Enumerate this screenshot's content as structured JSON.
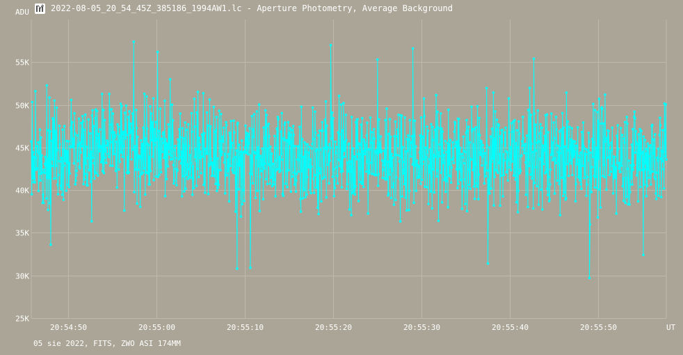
{
  "window": {
    "title": "2022-08-05_20_54_45Z_385186_1994AW1.lc - Aperture Photometry, Average Background",
    "icon": "chart-app-icon"
  },
  "footer": {
    "text": "05 sie 2022, FITS, ZWO ASI 174MM"
  },
  "colors": {
    "background": "#aaa596",
    "grid": "#bdb9ad",
    "series": "#00ffff",
    "text": "#ffffff"
  },
  "chart_data": {
    "type": "line",
    "title": "2022-08-05_20_54_45Z_385186_1994AW1.lc - Aperture Photometry, Average Background",
    "ylabel": "ADU",
    "xlabel": "UT",
    "ylim": [
      25000,
      60000
    ],
    "y_ticks": [
      25000,
      30000,
      35000,
      40000,
      45000,
      50000,
      55000
    ],
    "y_tick_labels": [
      "25K",
      "30K",
      "35K",
      "40K",
      "45K",
      "50K",
      "55K"
    ],
    "x_range": [
      "20:54:45.8",
      "20:55:57.7"
    ],
    "x_ticks": [
      "20:54:50",
      "20:55:00",
      "20:55:10",
      "20:55:20",
      "20:55:30",
      "20:55:40",
      "20:55:50"
    ],
    "grid": true,
    "series": [
      {
        "name": "",
        "description": "dense noisy background series, ~1400 points, centered near 44K ADU, range ~30K–57K",
        "mean": 44000,
        "std": 3500,
        "min": 29700,
        "max": 57400,
        "n_points": 1400,
        "notable_points": [
          {
            "x": "20:54:57.4",
            "y": 57400
          },
          {
            "x": "20:55:00.1",
            "y": 56200
          },
          {
            "x": "20:55:19.7",
            "y": 57000
          },
          {
            "x": "20:55:29.0",
            "y": 56600
          },
          {
            "x": "20:55:42.7",
            "y": 55400
          },
          {
            "x": "20:55:25.0",
            "y": 55300
          },
          {
            "x": "20:55:09.1",
            "y": 30800
          },
          {
            "x": "20:55:10.6",
            "y": 30900
          },
          {
            "x": "20:55:49.0",
            "y": 29700
          },
          {
            "x": "20:55:37.5",
            "y": 31400
          },
          {
            "x": "20:55:55.1",
            "y": 32400
          },
          {
            "x": "20:54:48.0",
            "y": 33600
          }
        ]
      }
    ]
  }
}
